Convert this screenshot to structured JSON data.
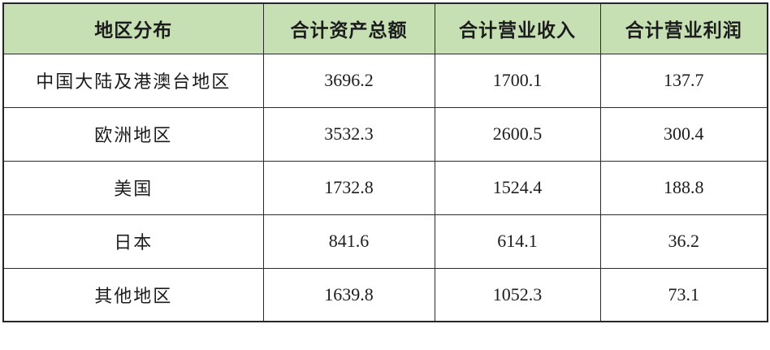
{
  "chart_data": {
    "type": "table",
    "columns": [
      "地区分布",
      "合计资产总额",
      "合计营业收入",
      "合计营业利润"
    ],
    "rows": [
      [
        "中国大陆及港澳台地区",
        "3696.2",
        "1700.1",
        "137.7"
      ],
      [
        "欧洲地区",
        "3532.3",
        "2600.5",
        "300.4"
      ],
      [
        "美国",
        "1732.8",
        "1524.4",
        "188.8"
      ],
      [
        "日本",
        "841.6",
        "614.1",
        "36.2"
      ],
      [
        "其他地区",
        "1639.8",
        "1052.3",
        "73.1"
      ]
    ],
    "layout_hints": {
      "header_position": "top",
      "grid": "all-borders",
      "alignment": "center"
    }
  },
  "colors": {
    "header_bg": "#c6e0b4",
    "border": "#2b2b2b",
    "text": "#1c1c1c",
    "page_bg": "#ffffff"
  }
}
